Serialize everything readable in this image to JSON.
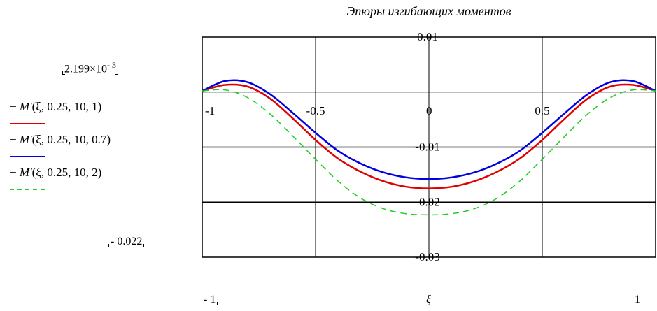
{
  "chart_data": {
    "type": "line",
    "title": "Эпюры изгибающих моментов",
    "xlabel": "ξ",
    "xlim": [
      -1,
      1
    ],
    "ylim": [
      -0.03,
      0.01
    ],
    "x_ticks": [
      "-1",
      "-0.5",
      "0",
      "0.5"
    ],
    "y_ticks": [
      "0.01",
      "-0.01",
      "-0.02",
      "-0.03"
    ],
    "x_range_labels": {
      "min": "- 1",
      "max": "1"
    },
    "y_range_labels": {
      "max": "2.199×10",
      "max_exp": "- 3",
      "min": "- 0.022"
    },
    "grid": true,
    "x": [
      -1,
      -0.9,
      -0.8,
      -0.7,
      -0.6,
      -0.5,
      -0.4,
      -0.3,
      -0.2,
      -0.1,
      0,
      0.1,
      0.2,
      0.3,
      0.4,
      0.5,
      0.6,
      0.7,
      0.8,
      0.9,
      1
    ],
    "series": [
      {
        "name": "− M'(ξ, 0.25, 10, 1)",
        "color": "#e00000",
        "dash": false,
        "values": [
          0.0002,
          0.0013,
          0.001,
          -0.0012,
          -0.0048,
          -0.0087,
          -0.0121,
          -0.0145,
          -0.0162,
          -0.0172,
          -0.0175,
          -0.0172,
          -0.0162,
          -0.0145,
          -0.0121,
          -0.0087,
          -0.0048,
          -0.0012,
          0.001,
          0.0013,
          0.0002
        ]
      },
      {
        "name": "− M'(ξ, 0.25, 10, 0.7)",
        "color": "#0000e0",
        "dash": false,
        "values": [
          0.0002,
          0.002,
          0.0018,
          -0.0004,
          -0.0038,
          -0.0074,
          -0.0107,
          -0.013,
          -0.0146,
          -0.0155,
          -0.0158,
          -0.0155,
          -0.0146,
          -0.013,
          -0.0107,
          -0.0074,
          -0.0038,
          -0.0004,
          0.0018,
          0.002,
          0.0002
        ]
      },
      {
        "name": "− M'(ξ, 0.25, 10, 2)",
        "color": "#22cc22",
        "dash": true,
        "values": [
          0.0002,
          0.0004,
          -0.001,
          -0.004,
          -0.008,
          -0.0122,
          -0.0162,
          -0.0193,
          -0.0212,
          -0.0221,
          -0.0223,
          -0.0221,
          -0.0212,
          -0.0193,
          -0.0162,
          -0.0122,
          -0.008,
          -0.004,
          -0.001,
          0.0004,
          0.0002
        ]
      }
    ]
  },
  "legend": [
    {
      "prefix": "− ",
      "func": "M'",
      "args": "(ξ, 0.25, 10, 1)"
    },
    {
      "prefix": "− ",
      "func": "M'",
      "args": "(ξ, 0.25, 10, 0.7)"
    },
    {
      "prefix": "− ",
      "func": "M'",
      "args": "(ξ, 0.25, 10, 2)"
    }
  ]
}
